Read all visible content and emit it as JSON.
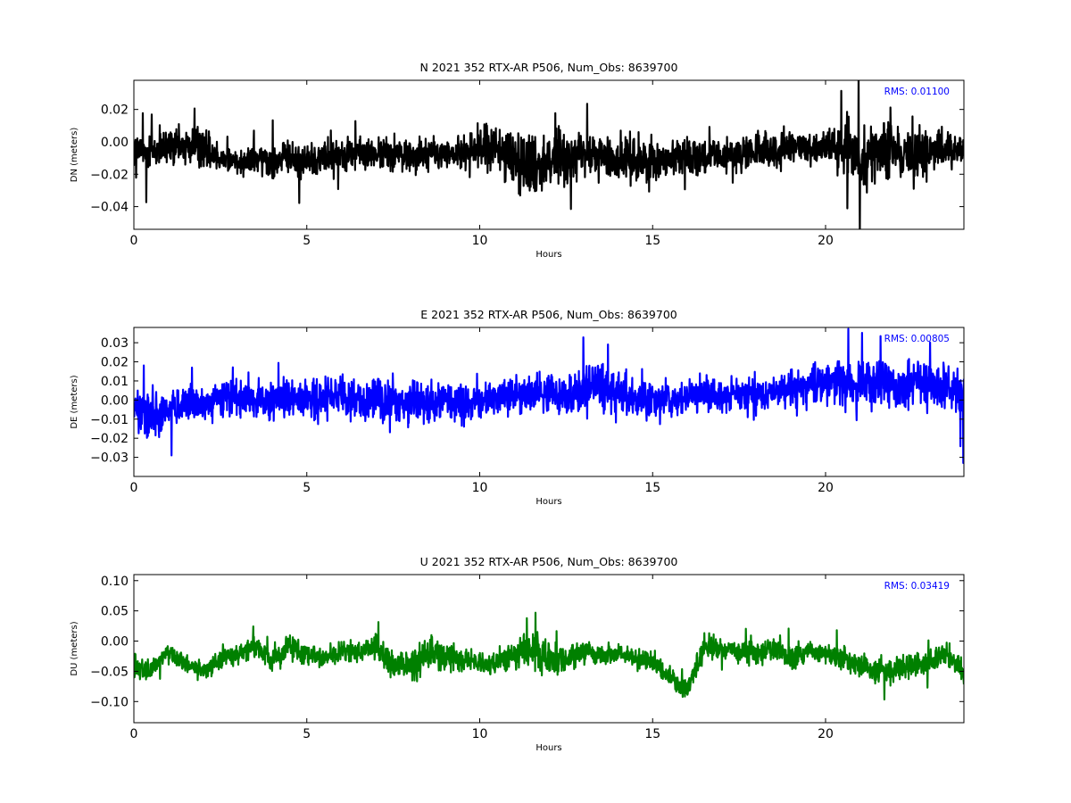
{
  "chart_data": [
    {
      "type": "line",
      "title": "N 2021 352 RTX-AR  P506, Num_Obs: 8639700",
      "xlabel": "Hours",
      "ylabel": "DN (meters)",
      "xlim": [
        0,
        24
      ],
      "ylim": [
        -0.054,
        0.038
      ],
      "xticks": [
        0,
        5,
        10,
        15,
        20
      ],
      "xtick_labels": [
        "0",
        "5",
        "10",
        "15",
        "20"
      ],
      "yticks": [
        0.02,
        0.0,
        -0.02,
        -0.04
      ],
      "ytick_labels": [
        "0.02",
        "0.00",
        "−0.02",
        "−0.04"
      ],
      "grid": false,
      "color": "#000000",
      "annotation": "RMS:  0.01100",
      "annotation_color": "#0000ff",
      "series": [
        {
          "x": [
            0,
            0.5,
            1,
            1.5,
            2,
            2.5,
            3,
            3.5,
            4,
            4.5,
            5,
            5.5,
            6,
            6.5,
            7,
            7.5,
            8,
            8.5,
            9,
            9.5,
            10,
            10.5,
            11,
            11.5,
            12,
            12.5,
            13,
            13.5,
            14,
            14.5,
            15,
            15.5,
            16,
            16.5,
            17,
            17.5,
            18,
            18.5,
            19,
            19.5,
            20,
            20.5,
            21,
            21.5,
            22,
            22.5,
            23,
            23.5,
            24
          ],
          "y_mean": [
            -0.005,
            -0.006,
            -0.004,
            -0.003,
            -0.003,
            -0.01,
            -0.012,
            -0.011,
            -0.011,
            -0.01,
            -0.012,
            -0.009,
            -0.007,
            -0.007,
            -0.008,
            -0.007,
            -0.008,
            -0.007,
            -0.008,
            -0.007,
            -0.003,
            -0.005,
            -0.01,
            -0.013,
            -0.011,
            -0.01,
            -0.008,
            -0.009,
            -0.011,
            -0.01,
            -0.011,
            -0.01,
            -0.009,
            -0.009,
            -0.01,
            -0.007,
            -0.007,
            -0.006,
            -0.004,
            -0.003,
            -0.003,
            -0.006,
            -0.008,
            -0.007,
            -0.008,
            -0.006,
            -0.007,
            -0.005,
            -0.004
          ],
          "y_spread": [
            0.016,
            0.02,
            0.018,
            0.017,
            0.02,
            0.012,
            0.012,
            0.014,
            0.015,
            0.016,
            0.015,
            0.016,
            0.014,
            0.014,
            0.014,
            0.014,
            0.016,
            0.015,
            0.013,
            0.013,
            0.02,
            0.025,
            0.028,
            0.03,
            0.026,
            0.022,
            0.02,
            0.018,
            0.02,
            0.022,
            0.02,
            0.018,
            0.016,
            0.016,
            0.015,
            0.016,
            0.017,
            0.016,
            0.015,
            0.015,
            0.016,
            0.022,
            0.025,
            0.026,
            0.026,
            0.025,
            0.02,
            0.018,
            0.014
          ]
        }
      ]
    },
    {
      "type": "line",
      "title": "E 2021 352 RTX-AR  P506, Num_Obs: 8639700",
      "xlabel": "Hours",
      "ylabel": "DE (meters)",
      "xlim": [
        0,
        24
      ],
      "ylim": [
        -0.04,
        0.038
      ],
      "xticks": [
        0,
        5,
        10,
        15,
        20
      ],
      "xtick_labels": [
        "0",
        "5",
        "10",
        "15",
        "20"
      ],
      "yticks": [
        0.03,
        0.02,
        0.01,
        0.0,
        -0.01,
        -0.02,
        -0.03
      ],
      "ytick_labels": [
        "0.03",
        "0.02",
        "0.01",
        "0.00",
        "−0.01",
        "−0.02",
        "−0.03"
      ],
      "grid": false,
      "color": "#0000ff",
      "annotation": "RMS:  0.00805",
      "annotation_color": "#0000ff",
      "series": [
        {
          "x": [
            0,
            0.5,
            1,
            1.5,
            2,
            2.5,
            3,
            3.5,
            4,
            4.5,
            5,
            5.5,
            6,
            6.5,
            7,
            7.5,
            8,
            8.5,
            9,
            9.5,
            10,
            10.5,
            11,
            11.5,
            12,
            12.5,
            13,
            13.5,
            14,
            14.5,
            15,
            15.5,
            16,
            16.5,
            17,
            17.5,
            18,
            18.5,
            19,
            19.5,
            20,
            20.5,
            21,
            21.5,
            22,
            22.5,
            23,
            23.5,
            24
          ],
          "y_mean": [
            -0.006,
            -0.008,
            -0.004,
            -0.002,
            -0.002,
            0.0,
            0.001,
            0.001,
            0.0,
            0.0,
            0.0,
            0.0,
            0.001,
            0.0,
            0.0,
            0.0,
            -0.001,
            -0.001,
            0.0,
            -0.002,
            -0.001,
            0.002,
            0.004,
            0.004,
            0.003,
            0.002,
            0.004,
            0.006,
            0.003,
            0.001,
            0.0,
            0.001,
            0.002,
            0.003,
            0.003,
            0.003,
            0.002,
            0.004,
            0.006,
            0.007,
            0.008,
            0.009,
            0.008,
            0.008,
            0.009,
            0.01,
            0.008,
            0.006,
            0.004
          ],
          "y_spread": [
            0.016,
            0.02,
            0.014,
            0.013,
            0.014,
            0.014,
            0.015,
            0.015,
            0.015,
            0.016,
            0.015,
            0.016,
            0.015,
            0.016,
            0.016,
            0.016,
            0.016,
            0.017,
            0.016,
            0.016,
            0.012,
            0.014,
            0.015,
            0.015,
            0.014,
            0.016,
            0.02,
            0.02,
            0.016,
            0.015,
            0.014,
            0.013,
            0.012,
            0.013,
            0.013,
            0.013,
            0.012,
            0.012,
            0.013,
            0.014,
            0.016,
            0.017,
            0.017,
            0.018,
            0.02,
            0.02,
            0.018,
            0.017,
            0.02
          ]
        }
      ]
    },
    {
      "type": "line",
      "title": "U 2021 352 RTX-AR  P506, Num_Obs: 8639700",
      "xlabel": "Hours",
      "ylabel": "DU (meters)",
      "xlim": [
        0,
        24
      ],
      "ylim": [
        -0.135,
        0.11
      ],
      "xticks": [
        0,
        5,
        10,
        15,
        20
      ],
      "xtick_labels": [
        "0",
        "5",
        "10",
        "15",
        "20"
      ],
      "yticks": [
        0.1,
        0.05,
        0.0,
        -0.05,
        -0.1
      ],
      "ytick_labels": [
        "0.10",
        "0.05",
        "0.00",
        "−0.05",
        "−0.10"
      ],
      "grid": false,
      "color": "#008000",
      "annotation": "RMS:  0.03419",
      "annotation_color": "#0000ff",
      "series": [
        {
          "x": [
            0,
            0.5,
            1,
            1.5,
            2,
            2.5,
            3,
            3.5,
            4,
            4.5,
            5,
            5.5,
            6,
            6.5,
            7,
            7.5,
            8,
            8.5,
            9,
            9.5,
            10,
            10.5,
            11,
            11.5,
            12,
            12.5,
            13,
            13.5,
            14,
            14.5,
            15,
            15.5,
            16,
            16.5,
            17,
            17.5,
            18,
            18.5,
            19,
            19.5,
            20,
            20.5,
            21,
            21.5,
            22,
            22.5,
            23,
            23.5,
            24
          ],
          "y_mean": [
            -0.04,
            -0.05,
            -0.015,
            -0.04,
            -0.05,
            -0.03,
            -0.02,
            -0.01,
            -0.03,
            -0.01,
            -0.02,
            -0.03,
            -0.015,
            -0.02,
            -0.01,
            -0.04,
            -0.04,
            -0.02,
            -0.02,
            -0.03,
            -0.04,
            -0.035,
            -0.02,
            -0.015,
            -0.03,
            -0.03,
            -0.02,
            -0.025,
            -0.02,
            -0.03,
            -0.035,
            -0.06,
            -0.08,
            -0.01,
            -0.015,
            -0.015,
            -0.02,
            -0.01,
            -0.03,
            -0.015,
            -0.02,
            -0.03,
            -0.04,
            -0.05,
            -0.05,
            -0.04,
            -0.035,
            -0.02,
            -0.05
          ],
          "y_spread": [
            0.025,
            0.025,
            0.02,
            0.02,
            0.022,
            0.022,
            0.023,
            0.025,
            0.025,
            0.028,
            0.025,
            0.022,
            0.022,
            0.025,
            0.028,
            0.035,
            0.035,
            0.035,
            0.032,
            0.028,
            0.025,
            0.025,
            0.04,
            0.045,
            0.035,
            0.03,
            0.028,
            0.025,
            0.025,
            0.025,
            0.025,
            0.022,
            0.025,
            0.03,
            0.03,
            0.03,
            0.03,
            0.03,
            0.028,
            0.025,
            0.025,
            0.028,
            0.03,
            0.03,
            0.03,
            0.03,
            0.028,
            0.03,
            0.03
          ]
        }
      ]
    }
  ]
}
